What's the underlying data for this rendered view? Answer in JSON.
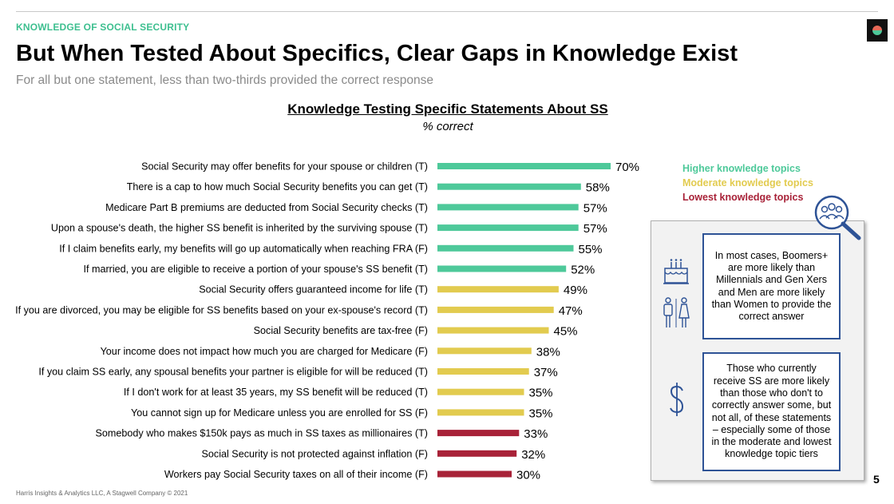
{
  "header": {
    "section": "KNOWLEDGE OF SOCIAL SECURITY",
    "title": "But When Tested About Specifics, Clear Gaps in Knowledge Exist",
    "subtitle": "For all but one statement, less than two-thirds provided the correct response"
  },
  "colors": {
    "higher": "#4ec99a",
    "moderate": "#e2cb4f",
    "lowest": "#a82238",
    "accent_blue": "#2e5396"
  },
  "chart_data": {
    "type": "bar",
    "orientation": "horizontal",
    "title": "Knowledge Testing Specific Statements About SS",
    "subtitle": "% correct",
    "xlim": [
      0,
      100
    ],
    "grid": false,
    "legend_position": "right",
    "categories": [
      "Social Security may offer benefits for your spouse or children (T)",
      "There is a cap to how much Social Security benefits you can get (T)",
      "Medicare Part B premiums are deducted from Social Security checks (T)",
      "Upon a spouse's death, the higher SS benefit is inherited by the surviving spouse (T)",
      "If I claim benefits early, my benefits will go up automatically when reaching FRA (F)",
      "If married, you are eligible to receive a portion of your spouse's SS benefit (T)",
      "Social Security offers guaranteed income for life (T)",
      "If you are divorced, you may be eligible for SS benefits based on your ex-spouse's record (T)",
      "Social Security benefits are tax-free (F)",
      "Your income does not impact how much you are charged for Medicare (F)",
      "If you claim SS early, any spousal benefits your partner is eligible for will be reduced (T)",
      "If I don't work for at least 35 years, my SS benefit will be reduced (T)",
      "You cannot sign up for Medicare unless you are enrolled for SS (F)",
      "Somebody who makes $150k pays as much in SS taxes as millionaires (T)",
      "Social Security is not protected against inflation (F)",
      "Workers pay Social Security taxes on all of their income (F)"
    ],
    "values": [
      70,
      58,
      57,
      57,
      55,
      52,
      49,
      47,
      45,
      38,
      37,
      35,
      35,
      33,
      32,
      30
    ],
    "value_labels": [
      "70%",
      "58%",
      "57%",
      "57%",
      "55%",
      "52%",
      "49%",
      "47%",
      "45%",
      "38%",
      "37%",
      "35%",
      "35%",
      "33%",
      "32%",
      "30%"
    ],
    "tiers": [
      "higher",
      "higher",
      "higher",
      "higher",
      "higher",
      "higher",
      "moderate",
      "moderate",
      "moderate",
      "moderate",
      "moderate",
      "moderate",
      "moderate",
      "lowest",
      "lowest",
      "lowest"
    ],
    "legend": [
      {
        "tier": "higher",
        "label": "Higher knowledge topics"
      },
      {
        "tier": "moderate",
        "label": "Moderate knowledge topics"
      },
      {
        "tier": "lowest",
        "label": "Lowest knowledge topics"
      }
    ]
  },
  "insights": {
    "demographics": "In most cases, Boomers+ are more likely than Millennials and Gen Xers and Men are more likely than Women to provide the correct answer",
    "recipients": "Those who currently receive SS are more likely than those who don't to correctly answer some, but not all, of these statements – especially some of those in the moderate and lowest knowledge topic tiers"
  },
  "icons": [
    "magnifier-people-icon",
    "birthday-cake-icon",
    "man-woman-icon",
    "dollar-icon",
    "logo-icon"
  ],
  "footer": {
    "copyright": "Harris Insights & Analytics LLC, A Stagwell Company © 2021",
    "page": "5"
  }
}
